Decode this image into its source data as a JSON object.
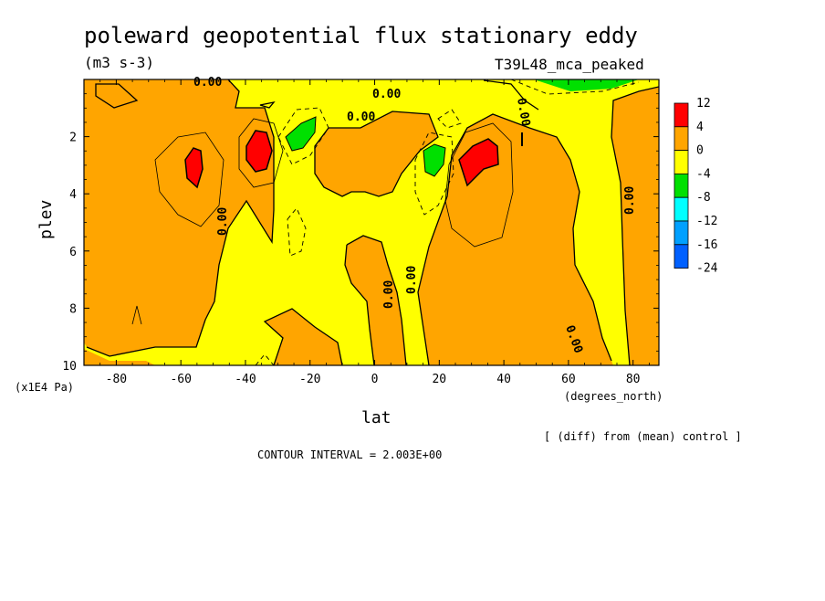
{
  "title": "poleward geopotential flux stationary eddy",
  "units": "(m3 s-3)",
  "run_label": "T39L48_mca_peaked",
  "comparison": "[ (diff) from (mean) control ]",
  "contour_interval": "CONTOUR INTERVAL = 2.003E+00",
  "contour_label": "0.00",
  "colors": {
    "background": "#ffffff",
    "level_4_12": "#ff0000",
    "level_0_4": "#ffa500",
    "level_m4_0": "#ffff00",
    "level_m8_m4": "#00e000",
    "level_m12_m8": "#00ffff",
    "level_m16_m12": "#00a0ff",
    "level_m24_m16": "#0060ff"
  },
  "chart_data": {
    "type": "heatmap",
    "title": "poleward geopotential flux stationary eddy",
    "subtitle": "(m3 s-3)",
    "xlabel": "lat",
    "xunits": "(degrees_north)",
    "ylabel": "plev",
    "yunits": "(x1E4 Pa)",
    "xlim": [
      -90,
      88
    ],
    "ylim": [
      10,
      0
    ],
    "xticks": [
      -80,
      -60,
      -40,
      -20,
      0,
      20,
      40,
      60,
      80
    ],
    "yticks": [
      2,
      4,
      6,
      8,
      10
    ],
    "colorbar": {
      "labels": [
        "12",
        "4",
        "0",
        "-4",
        "-8",
        "-12",
        "-16",
        "-24"
      ],
      "levels": [
        12,
        4,
        0,
        -4,
        -8,
        -12,
        -16,
        -24
      ]
    },
    "contour_interval": 2.003,
    "features": [
      {
        "kind": "maximum",
        "lat": -54,
        "plev": 3.0,
        "value": 4,
        "level": "4 to 12"
      },
      {
        "kind": "maximum",
        "lat": -34,
        "plev": 2.6,
        "value": 4,
        "level": "4 to 12"
      },
      {
        "kind": "maximum",
        "lat": 34,
        "plev": 3.0,
        "value": 4,
        "level": "4 to 12"
      },
      {
        "kind": "minimum",
        "lat": -20,
        "plev": 2.0,
        "value": -4,
        "level": "-8 to -4"
      },
      {
        "kind": "minimum",
        "lat": 19,
        "plev": 3.0,
        "value": -4,
        "level": "-8 to -4"
      },
      {
        "kind": "minimum",
        "lat": 70,
        "plev": 0.0,
        "value": -4,
        "level": "-8 to -4"
      }
    ]
  }
}
